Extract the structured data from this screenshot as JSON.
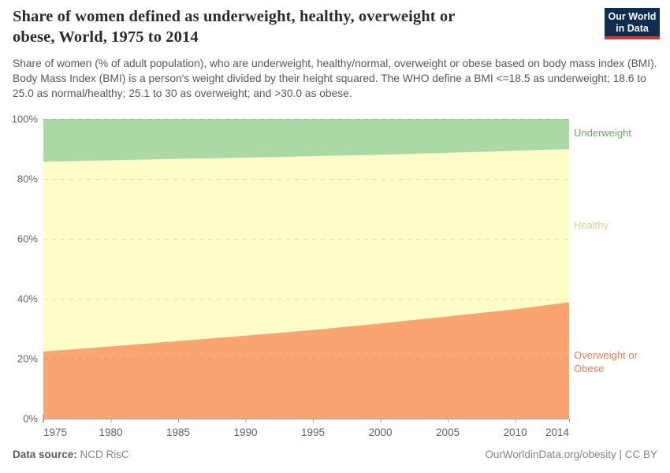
{
  "header": {
    "title": "Share of women defined as underweight, healthy, overweight or obese, World, 1975 to 2014",
    "subtitle": "Share of women (% of adult population), who are underweight, healthy/normal, overweight or obese based on body mass index (BMI). Body Mass Index (BMI) is a person's weight divided by their height squared. The WHO define a BMI <=18.5 as underweight; 18.6 to 25.0 as normal/healthy; 25.1 to 30 as overweight; and >30.0 as obese.",
    "logo": {
      "line1": "Our World",
      "line2": "in Data",
      "bg_color": "#0d2d52",
      "accent_color": "#d7352c"
    }
  },
  "chart_data": {
    "type": "area",
    "stacked": true,
    "title": "Share of women defined as underweight, healthy, overweight or obese, World, 1975 to 2014",
    "xlabel": "",
    "ylabel": "",
    "x": [
      1975,
      1980,
      1985,
      1990,
      1995,
      2000,
      2005,
      2010,
      2014
    ],
    "series": [
      {
        "name": "Overweight or Obese",
        "values": [
          22.4,
          24.1,
          25.9,
          27.7,
          29.6,
          31.8,
          34.1,
          36.5,
          38.9
        ],
        "color": "#f9a471",
        "label_color": "#ee7d51"
      },
      {
        "name": "Healthy",
        "values": [
          63.4,
          62.1,
          60.8,
          59.4,
          58.0,
          56.3,
          54.6,
          52.9,
          51.1
        ],
        "color": "#fefdc8",
        "label_color": "#d6d392"
      },
      {
        "name": "Underweight",
        "values": [
          14.2,
          13.8,
          13.3,
          12.9,
          12.4,
          11.9,
          11.3,
          10.6,
          10.0
        ],
        "color": "#abd9a5",
        "label_color": "#6ca465"
      }
    ],
    "ylim": [
      0,
      100
    ],
    "yticks": [
      0,
      20,
      40,
      60,
      80,
      100
    ],
    "ytick_suffix": "%",
    "xticks": [
      1975,
      1980,
      1985,
      1990,
      1995,
      2000,
      2005,
      2010,
      2014
    ],
    "grid": true,
    "legend_position": "right"
  },
  "footer": {
    "datasource_label": "Data source:",
    "datasource_value": "NCD RisC",
    "credit": "OurWorldinData.org/obesity | CC BY"
  }
}
